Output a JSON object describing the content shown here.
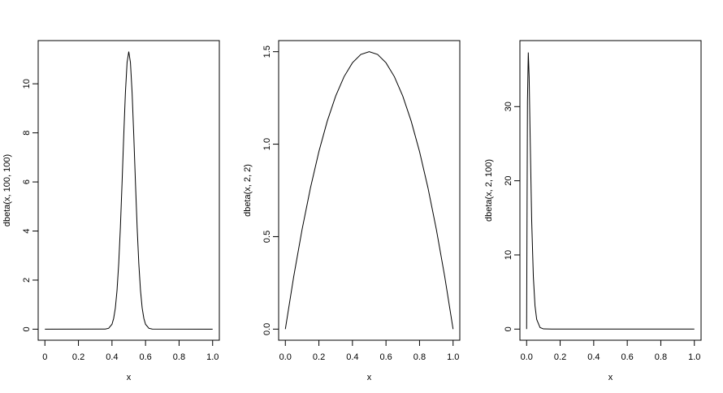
{
  "chart_data": [
    {
      "type": "line",
      "xlabel": "x",
      "ylabel": "dbeta(x, 100, 100)",
      "color": "#000000",
      "x": [
        0,
        0.36,
        0.38,
        0.4,
        0.41,
        0.42,
        0.43,
        0.44,
        0.45,
        0.46,
        0.47,
        0.48,
        0.49,
        0.5,
        0.51,
        0.52,
        0.53,
        0.54,
        0.55,
        0.56,
        0.57,
        0.58,
        0.59,
        0.6,
        0.62,
        0.64,
        1
      ],
      "values": [
        0,
        0.005,
        0.035,
        0.2,
        0.44,
        0.86,
        1.58,
        2.66,
        4.14,
        5.95,
        7.88,
        9.63,
        10.87,
        11.31,
        10.87,
        9.63,
        7.88,
        5.95,
        4.14,
        2.66,
        1.58,
        0.86,
        0.44,
        0.2,
        0.035,
        0.005,
        0
      ],
      "xlim": [
        -0.04,
        1.04
      ],
      "xticks": [
        0,
        0.2,
        0.4,
        0.6,
        0.8,
        {
          "value": 1,
          "label": "1.0"
        }
      ],
      "ylim": [
        -0.45,
        11.76
      ],
      "yticks": [
        0,
        2,
        4,
        6,
        8,
        10
      ]
    },
    {
      "type": "line",
      "xlabel": "x",
      "ylabel": "dbeta(x, 2, 2)",
      "color": "#000000",
      "x": [
        0,
        0.05,
        0.1,
        0.15,
        0.2,
        0.25,
        0.3,
        0.35,
        0.4,
        0.45,
        0.5,
        0.55,
        0.6,
        0.65,
        0.7,
        0.75,
        0.8,
        0.85,
        0.9,
        0.95,
        1
      ],
      "values": [
        0,
        0.285,
        0.54,
        0.765,
        0.96,
        1.125,
        1.26,
        1.365,
        1.44,
        1.485,
        1.5,
        1.485,
        1.44,
        1.365,
        1.26,
        1.125,
        0.96,
        0.765,
        0.54,
        0.285,
        0
      ],
      "xlim": [
        -0.04,
        1.04
      ],
      "xticks": [
        {
          "value": 0,
          "label": "0.0"
        },
        0.2,
        0.4,
        0.6,
        0.8,
        {
          "value": 1,
          "label": "1.0"
        }
      ],
      "ylim": [
        -0.06,
        1.56
      ],
      "yticks": [
        {
          "value": 0,
          "label": "0.0"
        },
        0.5,
        {
          "value": 1,
          "label": "1.0"
        },
        1.5
      ]
    },
    {
      "type": "line",
      "xlabel": "x",
      "ylabel": "dbeta(x, 2, 100)",
      "color": "#000000",
      "x": [
        0,
        0.005,
        0.01,
        0.015,
        0.02,
        0.03,
        0.04,
        0.05,
        0.06,
        0.08,
        0.1,
        0.15,
        1
      ],
      "values": [
        0,
        30.7,
        37.3,
        34.0,
        27.3,
        14.8,
        7.1,
        3.15,
        1.31,
        0.21,
        0.03,
        0,
        0
      ],
      "xlim": [
        -0.04,
        1.04
      ],
      "xticks": [
        {
          "value": 0,
          "label": "0.0"
        },
        0.2,
        0.4,
        0.6,
        0.8,
        {
          "value": 1,
          "label": "1.0"
        }
      ],
      "ylim": [
        -1.5,
        38.9
      ],
      "yticks": [
        0,
        10,
        20,
        30
      ]
    }
  ]
}
